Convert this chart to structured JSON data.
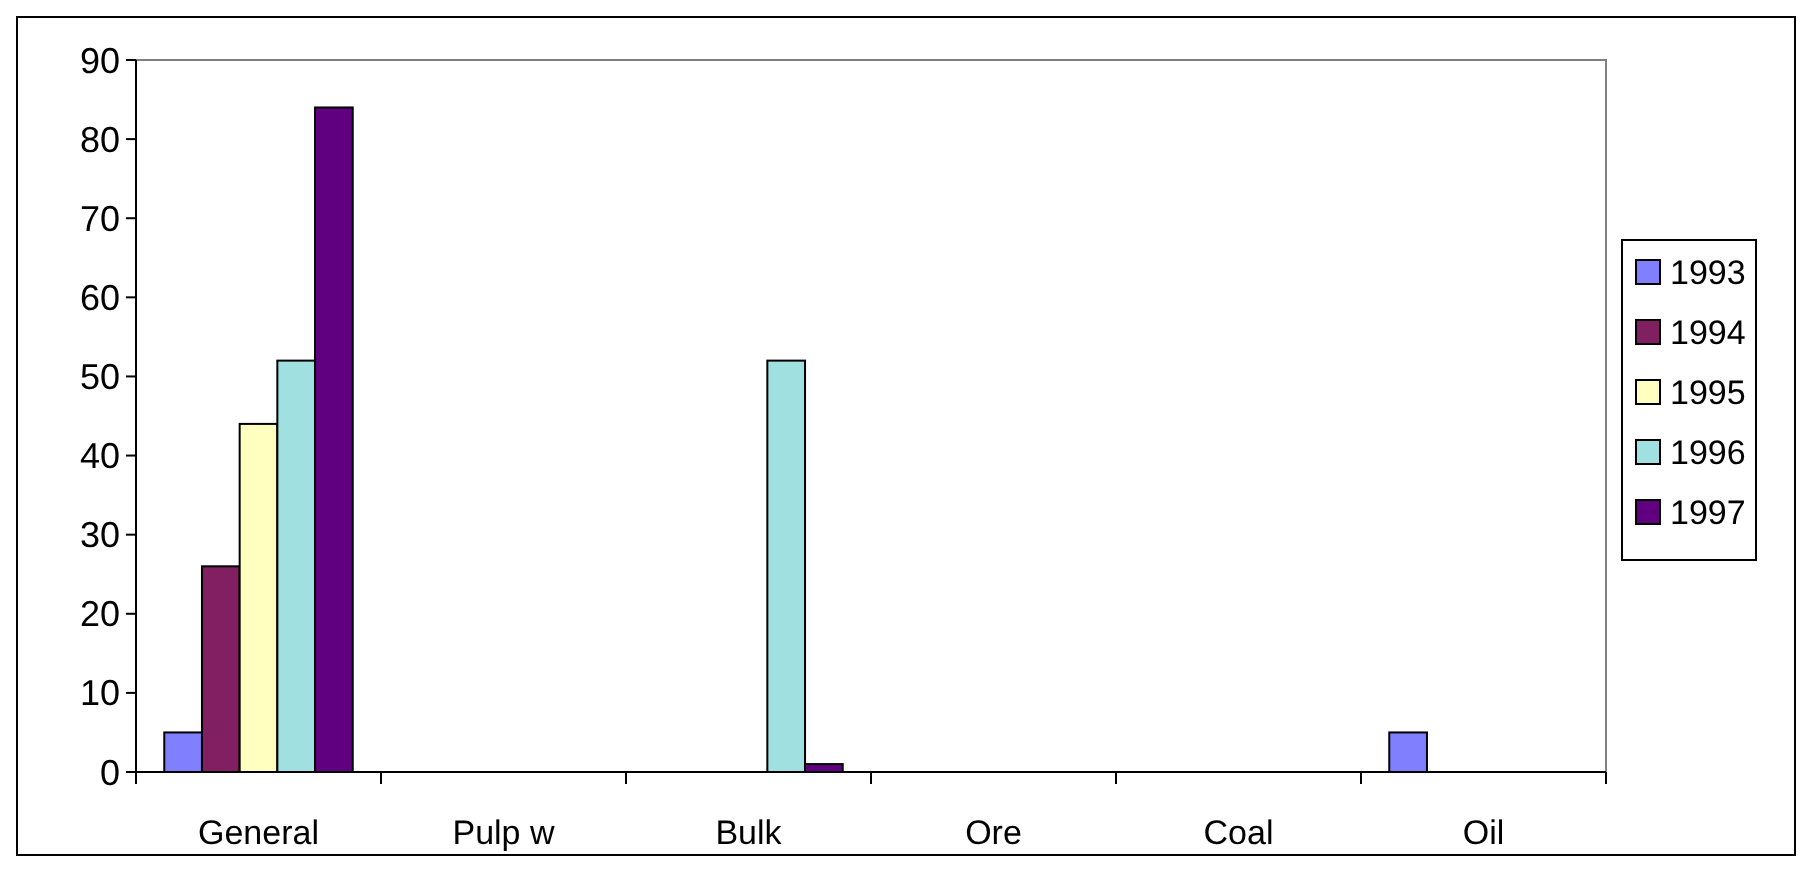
{
  "chart_data": {
    "type": "bar",
    "categories": [
      "General",
      "Pulp w",
      "Bulk",
      "Ore",
      "Coal",
      "Oil"
    ],
    "series": [
      {
        "name": "1993",
        "color": "#8080ff",
        "values": [
          5,
          0,
          0,
          0,
          0,
          5
        ]
      },
      {
        "name": "1994",
        "color": "#802060",
        "values": [
          26,
          0,
          0,
          0,
          0,
          0
        ]
      },
      {
        "name": "1995",
        "color": "#ffffc0",
        "values": [
          44,
          0,
          0,
          0,
          0,
          0
        ]
      },
      {
        "name": "1996",
        "color": "#a0e0e0",
        "values": [
          52,
          0,
          52,
          0,
          0,
          0
        ]
      },
      {
        "name": "1997",
        "color": "#600080",
        "values": [
          84,
          0,
          1,
          0,
          0,
          0
        ]
      }
    ],
    "ylim": [
      0,
      90
    ],
    "yticks": [
      0,
      10,
      20,
      30,
      40,
      50,
      60,
      70,
      80,
      90
    ],
    "grid": false,
    "legend": "right"
  }
}
